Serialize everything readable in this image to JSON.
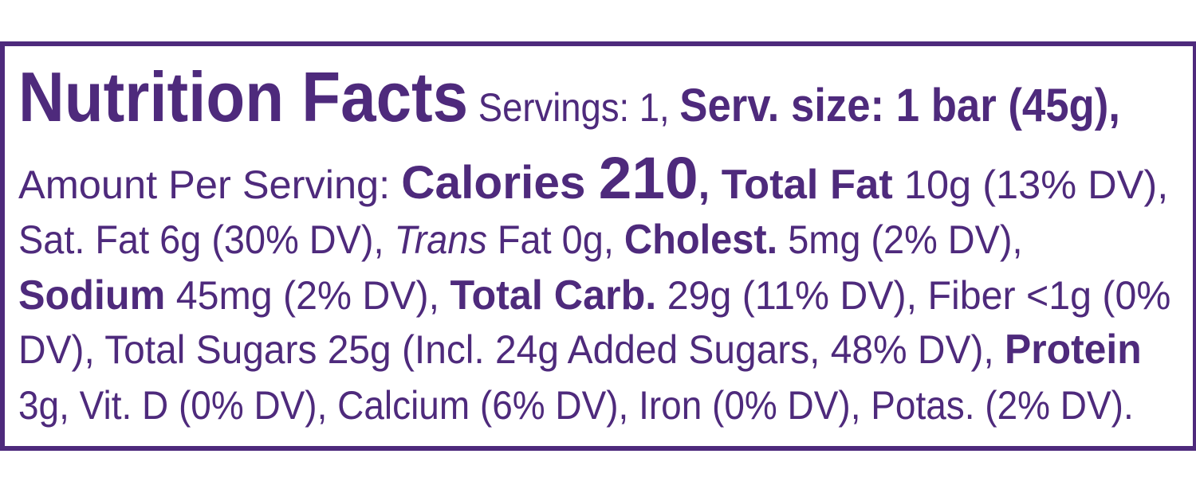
{
  "label_color": "#4e2a7c",
  "lines": [
    [
      {
        "t": "Nutrition Facts",
        "s": "b",
        "size": 88
      },
      {
        "t": " Servings: 1, ",
        "s": "n",
        "size": 50
      },
      {
        "t": "Serv. size: 1 bar (45g),",
        "s": "b",
        "size": 58
      }
    ],
    [
      {
        "t": "Amount Per Serving: ",
        "s": "n",
        "size": 50
      },
      {
        "t": "Calories ",
        "s": "b",
        "size": 58
      },
      {
        "t": "210",
        "s": "b",
        "size": 74
      },
      {
        "t": ", Total Fat",
        "s": "b",
        "size": 52
      },
      {
        "t": " 10g (13% DV),",
        "s": "n",
        "size": 50
      }
    ],
    [
      {
        "t": "Sat. Fat 6g (30% DV), ",
        "s": "n",
        "size": 50
      },
      {
        "t": "Trans",
        "s": "i",
        "size": 50
      },
      {
        "t": " Fat 0g, ",
        "s": "n",
        "size": 50
      },
      {
        "t": "Cholest.",
        "s": "b",
        "size": 52
      },
      {
        "t": " 5mg (2% DV),",
        "s": "n",
        "size": 50
      }
    ],
    [
      {
        "t": "Sodium",
        "s": "b",
        "size": 52
      },
      {
        "t": " 45mg (2% DV), ",
        "s": "n",
        "size": 50
      },
      {
        "t": "Total Carb.",
        "s": "b",
        "size": 52
      },
      {
        "t": " 29g (11% DV), Fiber <1g (0%",
        "s": "n",
        "size": 50
      }
    ],
    [
      {
        "t": "DV), Total Sugars 25g (Incl. 24g Added Sugars, 48% DV), ",
        "s": "n",
        "size": 50
      },
      {
        "t": "Protein",
        "s": "b",
        "size": 52
      }
    ],
    [
      {
        "t": "3g, Vit. D (0% DV), Calcium (6% DV), Iron (0% DV), Potas. (2% DV).",
        "s": "n",
        "size": 50
      }
    ]
  ]
}
